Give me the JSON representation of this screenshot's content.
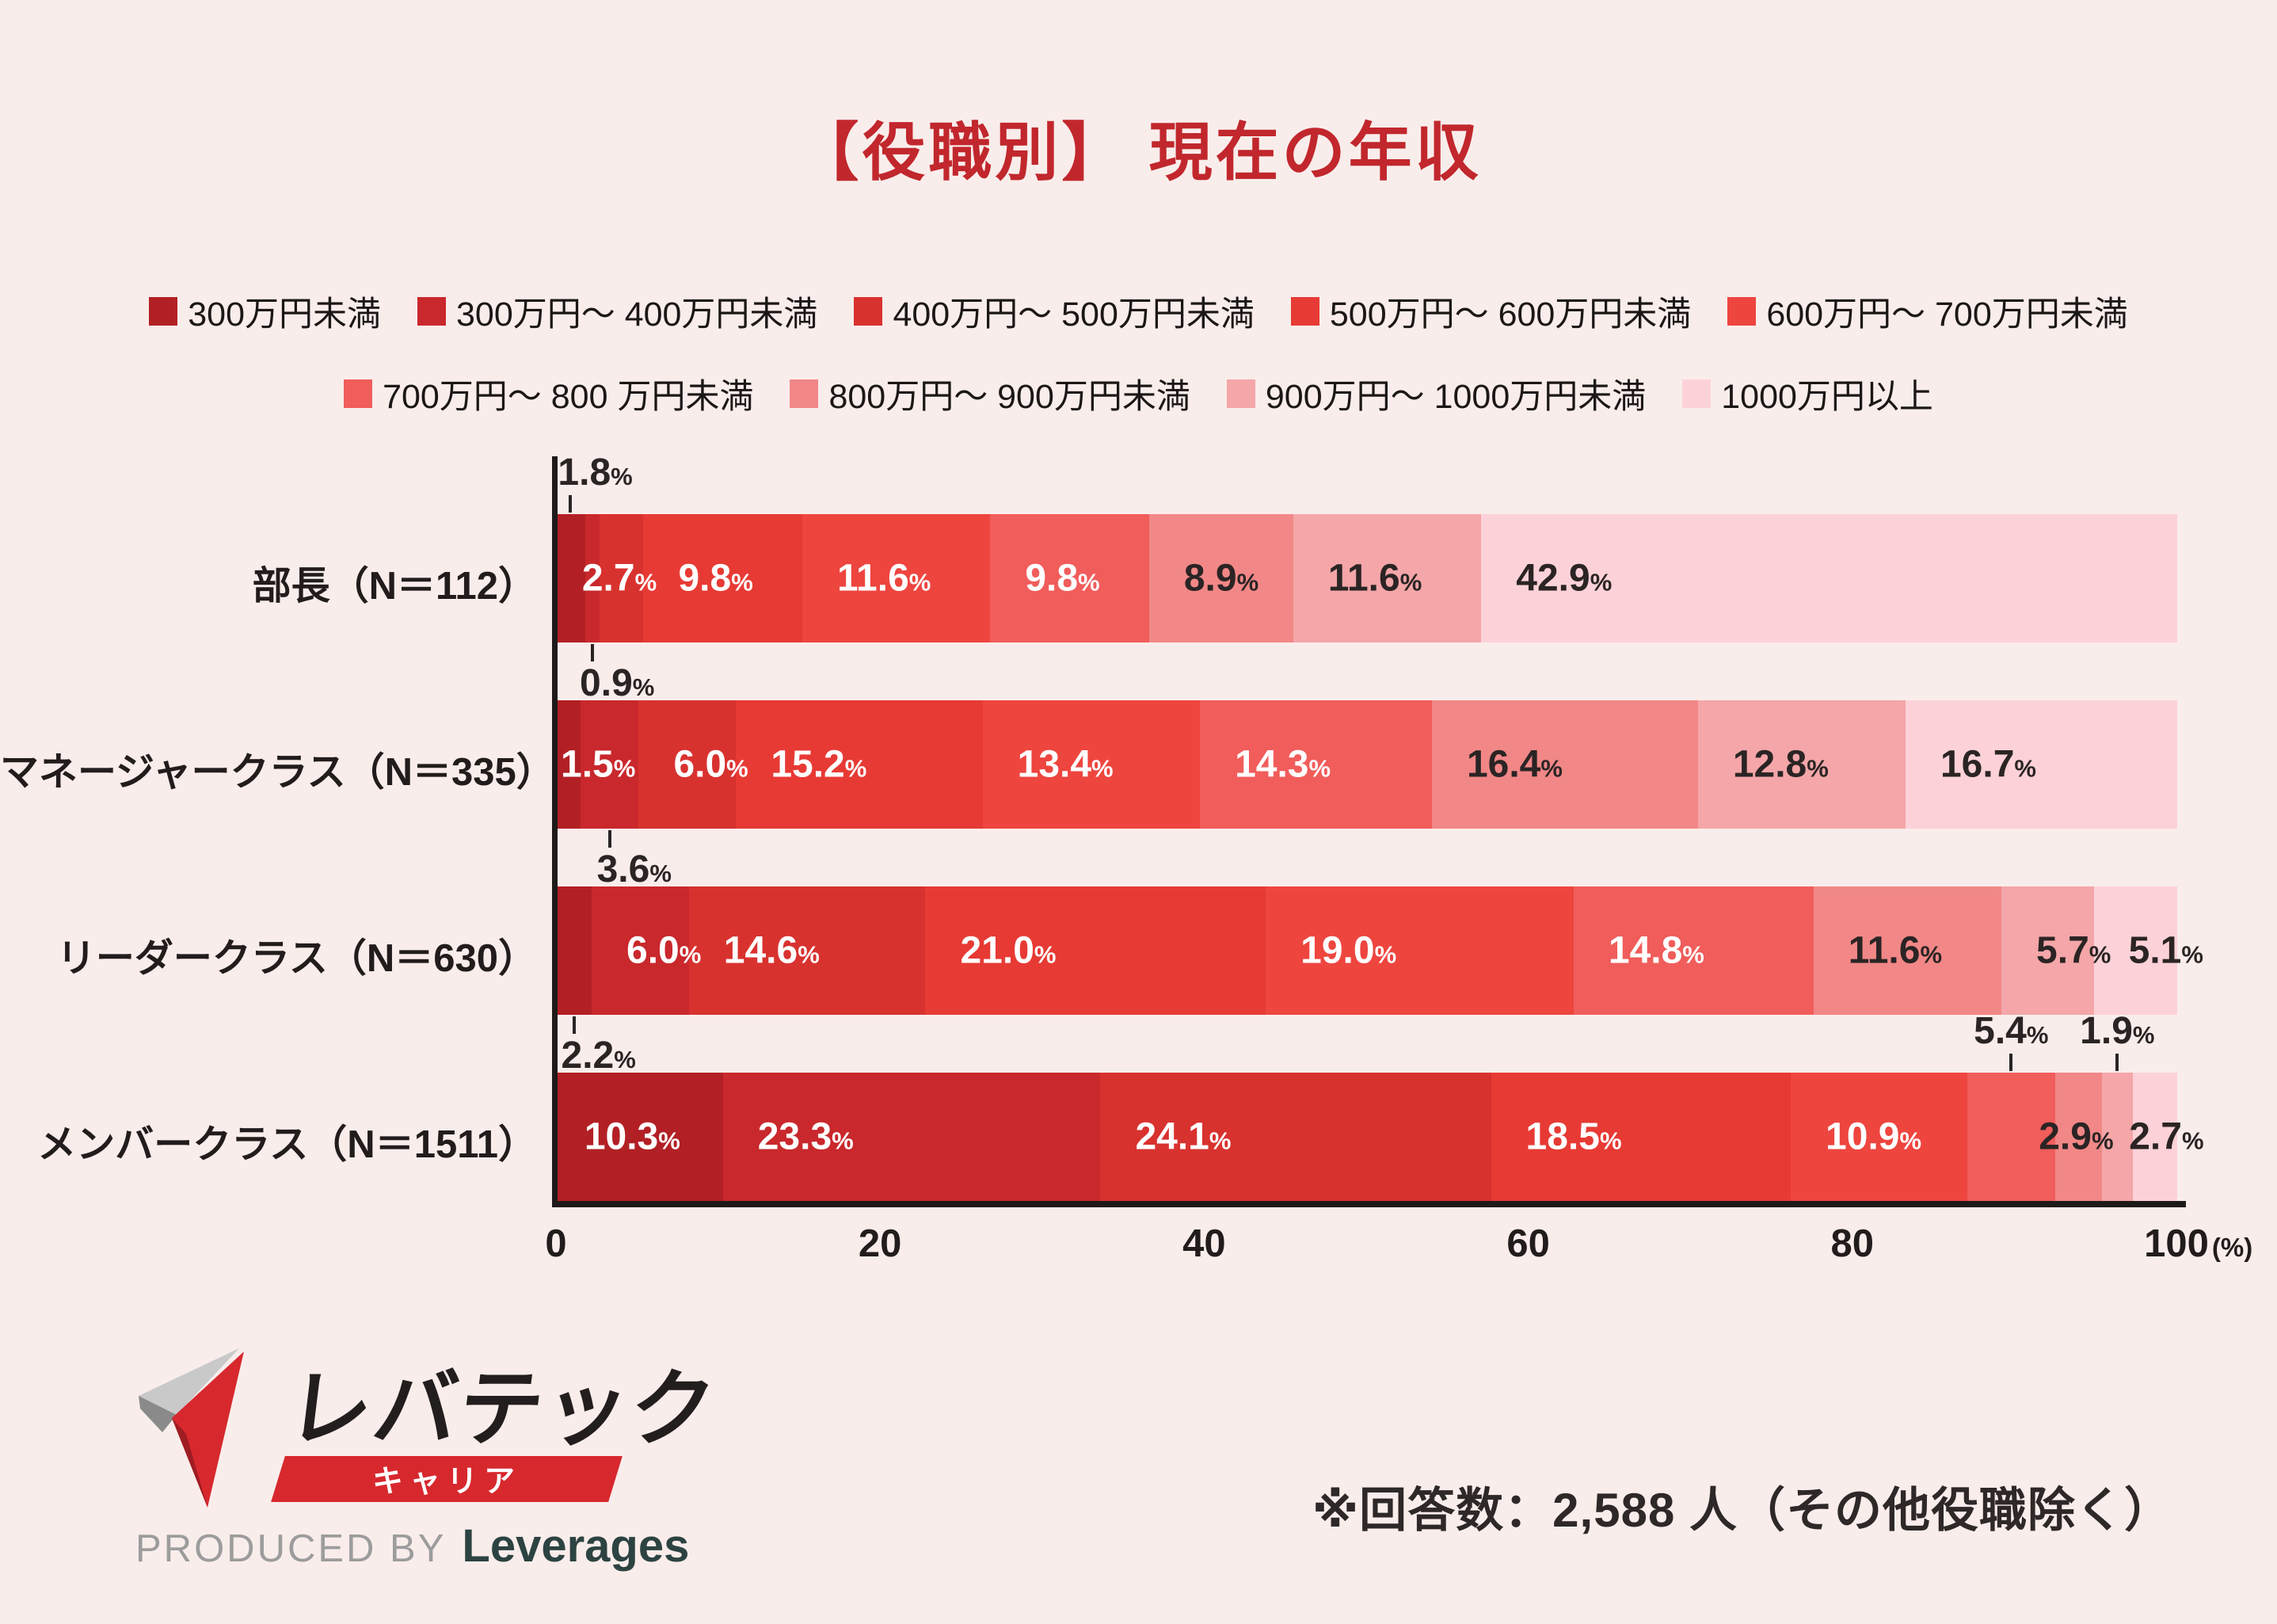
{
  "title": "【役職別】 現在の年収",
  "legend": [
    {
      "label": "300万円未満",
      "color": "#b22025"
    },
    {
      "label": "300万円〜 400万円未満",
      "color": "#c9282c"
    },
    {
      "label": "400万円〜 500万円未満",
      "color": "#d8322f"
    },
    {
      "label": "500万円〜 600万円未満",
      "color": "#e73a34"
    },
    {
      "label": "600万円〜 700万円未満",
      "color": "#ee453f"
    },
    {
      "label": "700万円〜 800 万円未満",
      "color": "#f05d5b"
    },
    {
      "label": "800万円〜 900万円未満",
      "color": "#f28787"
    },
    {
      "label": "900万円〜 1000万円未満",
      "color": "#f4a6a8"
    },
    {
      "label": "1000万円以上",
      "color": "#fcd2d8"
    }
  ],
  "chart_data": {
    "type": "bar",
    "subtype": "horizontal-stacked",
    "unit": "%",
    "title": "【役職別】 現在の年収",
    "categories": [
      "300万円未満",
      "300万円〜 400万円未満",
      "400万円〜 500万円未満",
      "500万円〜 600万円未満",
      "600万円〜 700万円未満",
      "700万円〜 800 万円未満",
      "800万円〜 900万円未満",
      "900万円〜 1000万円未満",
      "1000万円以上"
    ],
    "colors": [
      "#b22025",
      "#c9282c",
      "#d8322f",
      "#e73a34",
      "#ee453f",
      "#f05d5b",
      "#f28787",
      "#f4a6a8",
      "#fcd2d8"
    ],
    "xlim": [
      0,
      100
    ],
    "x_axis": {
      "ticks": [
        0,
        20,
        40,
        60,
        80,
        100
      ],
      "suffix": "(%)"
    },
    "legend_position": "top",
    "grid": false,
    "series_rows": [
      {
        "label": "部長（N＝112）",
        "values": [
          1.8,
          0.9,
          2.7,
          9.8,
          11.6,
          9.8,
          8.9,
          11.6,
          42.9
        ],
        "callouts": {
          "above": [
            0
          ],
          "below": [
            1
          ]
        }
      },
      {
        "label": "マネージャークラス（N＝335）",
        "values": [
          1.5,
          3.6,
          6.0,
          15.2,
          13.4,
          14.3,
          16.4,
          12.8,
          16.7
        ],
        "callouts": {
          "above": [],
          "below": [
            1
          ]
        }
      },
      {
        "label": "リーダークラス（N＝630）",
        "values": [
          2.2,
          6.0,
          14.6,
          21.0,
          19.0,
          14.8,
          11.6,
          5.7,
          5.1
        ],
        "callouts": {
          "above": [],
          "below": [
            0
          ]
        }
      },
      {
        "label": "メンバークラス（N＝1511）",
        "values": [
          10.3,
          23.3,
          24.1,
          18.5,
          10.9,
          5.4,
          2.9,
          1.9,
          2.7
        ],
        "callouts": {
          "above": [
            5,
            7
          ],
          "below": []
        }
      }
    ]
  },
  "footnote": "※回答数：2,588 人（その他役職除く）",
  "logo": {
    "brand": "レバテック",
    "sub_banner": "キャリア",
    "produced_by": "PRODUCED BY",
    "company": "Leverages"
  },
  "colors": {
    "background": "#f9edeb",
    "title": "#c1272d",
    "banner_red": "#d7282e",
    "label_light": "#ffffff",
    "label_dark": "#2b2424",
    "axis": "#1f1a1a"
  }
}
